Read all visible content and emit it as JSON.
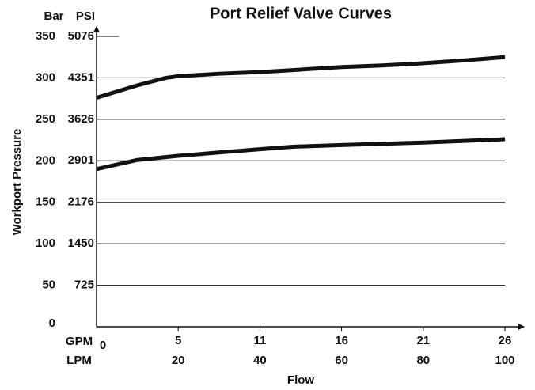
{
  "chart_data": {
    "type": "line",
    "title": "Port Relief Valve Curves",
    "y_label": "Workport Pressure",
    "x_label": "Flow",
    "y_unit": "Bar",
    "y2_unit": "PSI",
    "x_unit": "LPM",
    "x2_unit": "GPM",
    "xlim": [
      0,
      100
    ],
    "xticks": [
      20,
      40,
      60,
      80,
      100
    ],
    "x2lim": [
      0,
      26.42
    ],
    "x2ticks": [
      0,
      {
        "value": 5.28,
        "label": "5"
      },
      {
        "value": 10.57,
        "label": "11"
      },
      {
        "value": 15.85,
        "label": "16"
      },
      {
        "value": 21.13,
        "label": "21"
      },
      {
        "value": 26.42,
        "label": "26"
      }
    ],
    "ylim": [
      0,
      350
    ],
    "yticks": [
      0,
      50,
      100,
      150,
      200,
      250,
      300,
      350
    ],
    "y2lim": [
      0,
      5076
    ],
    "y2ticks": [
      725,
      1450,
      2176,
      2901,
      3626,
      4351,
      5076
    ],
    "grid": true,
    "series": [
      {
        "color": "#111111",
        "x": [
          0,
          10,
          17,
          20,
          30,
          40,
          50,
          60,
          70,
          78,
          90,
          100
        ],
        "values": [
          276,
          291,
          300,
          302,
          305,
          307,
          310,
          313,
          315,
          317,
          321,
          325
        ]
      },
      {
        "color": "#111111",
        "x": [
          0,
          10,
          20,
          30,
          40,
          48,
          60,
          80,
          100
        ],
        "values": [
          190,
          201,
          206,
          210,
          214,
          217,
          219,
          222,
          226
        ]
      }
    ]
  }
}
